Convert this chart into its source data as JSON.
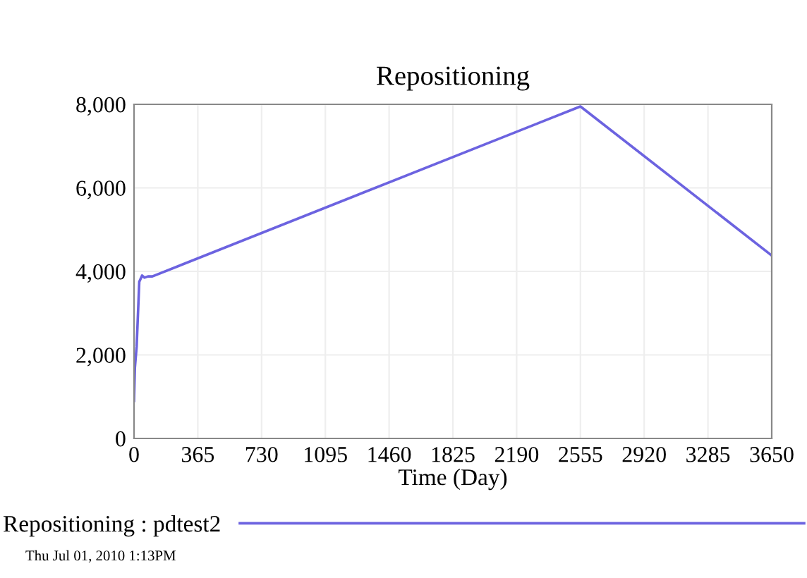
{
  "chart_data": {
    "type": "line",
    "title": "Repositioning",
    "xlabel": "Time (Day)",
    "x": [
      0,
      5,
      15,
      30,
      46,
      60,
      80,
      105,
      2555,
      3650
    ],
    "series": [
      {
        "name": "Repositioning : pdtest2",
        "color": "#6c63e0",
        "values": [
          900,
          1700,
          2200,
          3750,
          3900,
          3850,
          3880,
          3880,
          7950,
          4380
        ]
      }
    ],
    "xlim": [
      0,
      3650
    ],
    "xticks": [
      0,
      365,
      730,
      1095,
      1460,
      1825,
      2190,
      2555,
      2920,
      3285,
      3650
    ],
    "ylim": [
      0,
      8000
    ],
    "yticks": [
      {
        "value": 0,
        "label": "0"
      },
      {
        "value": 2000,
        "label": "2,000"
      },
      {
        "value": 4000,
        "label": "4,000"
      },
      {
        "value": 6000,
        "label": "6,000"
      },
      {
        "value": 8000,
        "label": "8,000"
      }
    ],
    "grid": true,
    "legend": "bottom",
    "line_style": "solid",
    "marker": "none",
    "annotations": [
      "Thu Jul 01, 2010 1:13PM"
    ]
  }
}
